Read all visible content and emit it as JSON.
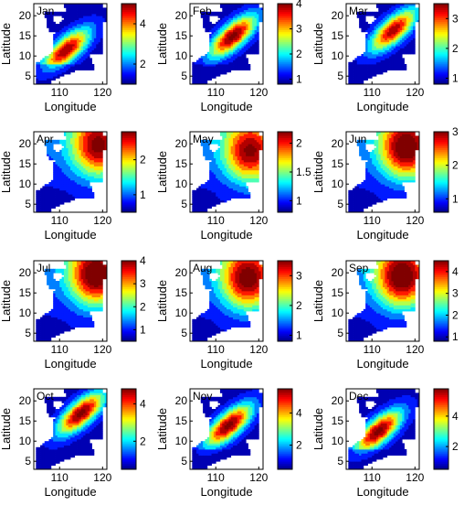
{
  "chart_data": {
    "type": "heatmap",
    "layout": "4 rows x 3 columns of monthly panels",
    "xlabel": "Longitude",
    "ylabel": "Latitude",
    "xlim": [
      104,
      121
    ],
    "ylim": [
      3,
      23
    ],
    "xticks": [
      110,
      120
    ],
    "yticks": [
      5,
      10,
      15,
      20
    ],
    "colormap": "jet",
    "land_color": "#ffffff",
    "panels": [
      {
        "month": "Jan",
        "clim": [
          1,
          5
        ],
        "cbar_ticks": [
          2,
          4
        ],
        "pattern": "diagonal_core",
        "core": [
          111.5,
          11.5
        ],
        "level": 0.95
      },
      {
        "month": "Feb",
        "clim": [
          0.8,
          4
        ],
        "cbar_ticks": [
          1,
          2,
          3,
          4
        ],
        "pattern": "diagonal_core",
        "core": [
          114,
          15
        ],
        "level": 1.0
      },
      {
        "month": "Mar",
        "clim": [
          0.8,
          3.5
        ],
        "cbar_ticks": [
          1,
          2,
          3
        ],
        "pattern": "diagonal_core",
        "core": [
          115,
          16.5
        ],
        "level": 0.92
      },
      {
        "month": "Apr",
        "clim": [
          0.5,
          2.8
        ],
        "cbar_ticks": [
          1,
          2
        ],
        "pattern": "northeast_max",
        "core": [
          119,
          19.5
        ],
        "level": 0.85
      },
      {
        "month": "May",
        "clim": [
          0.8,
          2.2
        ],
        "cbar_ticks": [
          1,
          1.5,
          2
        ],
        "pattern": "northeast_max",
        "core": [
          118,
          18
        ],
        "level": 0.85
      },
      {
        "month": "Jun",
        "clim": [
          0.6,
          3
        ],
        "cbar_ticks": [
          1,
          2,
          3
        ],
        "pattern": "northeast_max",
        "core": [
          118,
          19
        ],
        "level": 0.95
      },
      {
        "month": "Jul",
        "clim": [
          0.5,
          4
        ],
        "cbar_ticks": [
          1,
          2,
          3,
          4
        ],
        "pattern": "northeast_max",
        "core": [
          118.5,
          19.5
        ],
        "level": 0.95
      },
      {
        "month": "Aug",
        "clim": [
          0.8,
          3.5
        ],
        "cbar_ticks": [
          1,
          2,
          3
        ],
        "pattern": "northeast_max",
        "core": [
          117.5,
          18.5
        ],
        "level": 0.9
      },
      {
        "month": "Sep",
        "clim": [
          0.8,
          4.5
        ],
        "cbar_ticks": [
          1,
          2,
          3,
          4
        ],
        "pattern": "northeast_max",
        "core": [
          117,
          19
        ],
        "level": 0.95
      },
      {
        "month": "Oct",
        "clim": [
          0.5,
          4.8
        ],
        "cbar_ticks": [
          2,
          4
        ],
        "pattern": "diagonal_core",
        "core": [
          115,
          17
        ],
        "level": 1.0
      },
      {
        "month": "Nov",
        "clim": [
          0.5,
          5.5
        ],
        "cbar_ticks": [
          2,
          4
        ],
        "pattern": "diagonal_core",
        "core": [
          113,
          14
        ],
        "level": 1.0
      },
      {
        "month": "Dec",
        "clim": [
          0.5,
          5.8
        ],
        "cbar_ticks": [
          2,
          4
        ],
        "pattern": "diagonal_core",
        "core": [
          111.5,
          12.5
        ],
        "level": 1.0
      }
    ]
  }
}
